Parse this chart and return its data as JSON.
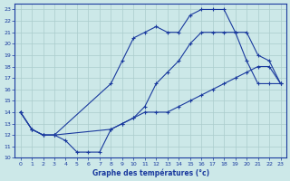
{
  "title": "Graphe des températures (°c)",
  "bg_color": "#cce8e8",
  "line_color": "#1a3a9e",
  "grid_color": "#aacccc",
  "xlim": [
    -0.5,
    23.5
  ],
  "ylim": [
    10,
    23.5
  ],
  "yticks": [
    10,
    11,
    12,
    13,
    14,
    15,
    16,
    17,
    18,
    19,
    20,
    21,
    22,
    23
  ],
  "xticks": [
    0,
    1,
    2,
    3,
    4,
    5,
    6,
    7,
    8,
    9,
    10,
    11,
    12,
    13,
    14,
    15,
    16,
    17,
    18,
    19,
    20,
    21,
    22,
    23
  ],
  "line1_x": [
    0,
    1,
    2,
    3,
    8,
    9,
    10,
    11,
    12,
    13,
    14,
    15,
    16,
    17,
    18,
    19,
    20,
    21,
    22,
    23
  ],
  "line1_y": [
    14,
    12.5,
    12,
    12,
    16.5,
    18.5,
    20.5,
    21,
    21.5,
    21,
    21,
    22.5,
    23,
    23,
    23,
    21,
    18.5,
    16.5,
    16.5,
    16.5
  ],
  "line2_x": [
    0,
    1,
    2,
    3,
    8,
    9,
    10,
    11,
    12,
    13,
    14,
    15,
    16,
    17,
    18,
    19,
    20,
    21,
    22,
    23
  ],
  "line2_y": [
    14,
    12.5,
    12,
    12,
    12.5,
    13,
    13.5,
    14.5,
    16.5,
    17.5,
    18.5,
    20,
    21,
    21,
    21,
    21,
    21,
    19,
    18.5,
    16.5
  ],
  "line3_x": [
    0,
    1,
    2,
    3,
    4,
    5,
    6,
    7,
    8,
    9,
    10,
    11,
    12,
    13,
    14,
    15,
    16,
    17,
    18,
    19,
    20,
    21,
    22,
    23
  ],
  "line3_y": [
    14,
    12.5,
    12,
    12,
    11.5,
    10.5,
    10.5,
    10.5,
    12.5,
    13,
    13.5,
    14,
    14,
    14,
    14.5,
    15,
    15.5,
    16,
    16.5,
    17,
    17.5,
    18,
    18,
    16.5
  ]
}
